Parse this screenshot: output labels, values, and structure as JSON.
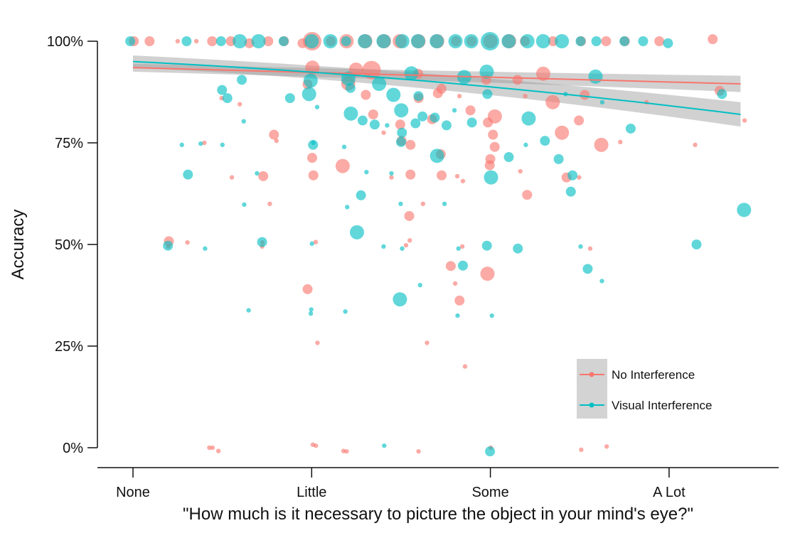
{
  "chart_data": {
    "type": "scatter",
    "xlabel": "\"How much is it necessary to picture the object in your mind's eye?\"",
    "ylabel": "Accuracy",
    "x_categories": [
      "None",
      "Little",
      "Some",
      "A Lot"
    ],
    "xlim": [
      0.8,
      4.6
    ],
    "ylim": [
      -0.04,
      1.04
    ],
    "y_ticks": [
      0,
      0.25,
      0.5,
      0.75,
      1.0
    ],
    "y_tick_labels": [
      "0%",
      "25%",
      "50%",
      "75%",
      "100%"
    ],
    "grid": false,
    "legend_position": "bottom-right",
    "series": [
      {
        "name": "No Interference",
        "color": "#F8766D",
        "trend": {
          "x0": 1.0,
          "y0": 0.935,
          "x1": 4.4,
          "y1": 0.895,
          "se_lo0": 0.925,
          "se_hi0": 0.945,
          "se_lo1": 0.875,
          "se_hi1": 0.915
        },
        "points": [
          [
            1.0,
            1.0,
            2
          ],
          [
            1.1,
            1.0,
            2
          ],
          [
            1.25,
            1.0,
            1
          ],
          [
            1.35,
            1.0,
            1
          ],
          [
            1.45,
            1.0,
            2
          ],
          [
            1.55,
            1.0,
            2
          ],
          [
            1.65,
            0.995,
            2
          ],
          [
            1.75,
            1.0,
            2
          ],
          [
            1.85,
            1.0,
            2
          ],
          [
            1.95,
            0.995,
            2
          ],
          [
            2.0,
            1.0,
            4
          ],
          [
            2.1,
            1.0,
            2
          ],
          [
            2.2,
            1.0,
            3
          ],
          [
            2.3,
            1.0,
            3
          ],
          [
            2.4,
            1.0,
            3
          ],
          [
            2.5,
            1.0,
            3
          ],
          [
            2.6,
            1.0,
            3
          ],
          [
            2.7,
            1.0,
            3
          ],
          [
            2.8,
            1.0,
            2
          ],
          [
            2.9,
            1.0,
            2
          ],
          [
            3.0,
            1.0,
            3
          ],
          [
            3.1,
            1.0,
            3
          ],
          [
            3.2,
            1.0,
            2
          ],
          [
            3.35,
            1.0,
            2
          ],
          [
            3.5,
            1.0,
            2
          ],
          [
            3.65,
            1.0,
            2
          ],
          [
            3.75,
            1.0,
            2
          ],
          [
            3.95,
            1.0,
            2
          ],
          [
            4.25,
            1.005,
            2
          ],
          [
            1.2,
            0.508,
            2
          ],
          [
            1.2,
            0.495,
            1
          ],
          [
            1.3,
            0.505,
            1
          ],
          [
            1.4,
            0.75,
            1
          ],
          [
            1.42,
            0.0,
            1
          ],
          [
            1.48,
            -0.008,
            1
          ],
          [
            1.55,
            0.665,
            1
          ],
          [
            1.6,
            0.845,
            1
          ],
          [
            1.72,
            0.495,
            1
          ],
          [
            1.72,
            0.505,
            1
          ],
          [
            1.78,
            0.77,
            2
          ],
          [
            1.8,
            0.755,
            1
          ],
          [
            1.77,
            0.6,
            1
          ],
          [
            1.72,
            0.668,
            2
          ],
          [
            1.5,
            0.86,
            1
          ],
          [
            1.98,
            0.894,
            2
          ],
          [
            2.0,
            0.935,
            3
          ],
          [
            2.0,
            0.713,
            2
          ],
          [
            2.0,
            0.67,
            2
          ],
          [
            2.02,
            0.506,
            1
          ],
          [
            2.0,
            0.0075,
            1
          ],
          [
            2.02,
            0.005,
            1
          ],
          [
            1.98,
            0.39,
            2
          ],
          [
            2.03,
            0.258,
            1
          ],
          [
            2.18,
            0.693,
            3
          ],
          [
            2.18,
            -0.008,
            1
          ],
          [
            2.2,
            0.896,
            3
          ],
          [
            2.25,
            0.93,
            3
          ],
          [
            2.3,
            0.868,
            2
          ],
          [
            2.33,
            0.929,
            4
          ],
          [
            2.35,
            0.82,
            2
          ],
          [
            2.4,
            0.775,
            1
          ],
          [
            2.45,
            0.665,
            1
          ],
          [
            2.5,
            0.755,
            2
          ],
          [
            2.5,
            0.795,
            2
          ],
          [
            2.52,
            0.498,
            1
          ],
          [
            2.55,
            0.745,
            2
          ],
          [
            2.55,
            0.51,
            1
          ],
          [
            2.55,
            0.672,
            2
          ],
          [
            2.55,
            0.57,
            2
          ],
          [
            2.6,
            0.92,
            2
          ],
          [
            2.6,
            0.86,
            2
          ],
          [
            2.62,
            0.6,
            1
          ],
          [
            2.65,
            0.258,
            1
          ],
          [
            2.68,
            0.808,
            2
          ],
          [
            2.7,
            0.872,
            2
          ],
          [
            2.72,
            0.67,
            2
          ],
          [
            2.72,
            0.722,
            2
          ],
          [
            2.72,
            0.883,
            2
          ],
          [
            2.78,
            0.447,
            2
          ],
          [
            2.8,
            0.404,
            1
          ],
          [
            2.82,
            0.362,
            2
          ],
          [
            2.85,
            0.2,
            1
          ],
          [
            2.82,
            0.668,
            1
          ],
          [
            2.84,
            0.656,
            1
          ],
          [
            2.88,
            0.83,
            2
          ],
          [
            2.82,
            0.865,
            1
          ],
          [
            2.85,
            0.495,
            1
          ],
          [
            2.98,
            0.428,
            3
          ],
          [
            2.98,
            0.905,
            2
          ],
          [
            2.98,
            0.8,
            2
          ],
          [
            3.0,
            0.71,
            2
          ],
          [
            3.0,
            0.695,
            2
          ],
          [
            3.02,
            0.815,
            3
          ],
          [
            3.02,
            0.74,
            2
          ],
          [
            3.02,
            0.77,
            2
          ],
          [
            3.0,
            0.0,
            1
          ],
          [
            3.15,
            0.905,
            2
          ],
          [
            3.17,
            0.68,
            1
          ],
          [
            3.2,
            0.622,
            2
          ],
          [
            3.2,
            0.865,
            1
          ],
          [
            3.3,
            0.92,
            3
          ],
          [
            3.35,
            0.85,
            3
          ],
          [
            3.4,
            0.775,
            3
          ],
          [
            3.42,
            0.665,
            2
          ],
          [
            3.5,
            0.805,
            2
          ],
          [
            3.5,
            0.665,
            1
          ],
          [
            3.55,
            0.49,
            1
          ],
          [
            3.52,
            0.868,
            2
          ],
          [
            3.62,
            0.745,
            3
          ],
          [
            3.72,
            0.752,
            1
          ],
          [
            3.88,
            0.85,
            1
          ],
          [
            4.15,
            0.745,
            1
          ],
          [
            4.28,
            0.878,
            2
          ],
          [
            4.42,
            0.805,
            1
          ],
          [
            1.45,
            0.0,
            1
          ],
          [
            2.2,
            -0.009,
            1
          ],
          [
            2.6,
            -0.009,
            1
          ],
          [
            3.5,
            -0.005,
            1
          ],
          [
            3.65,
            0.003,
            1
          ]
        ]
      },
      {
        "name": "Visual Interference",
        "color": "#00BFC4",
        "trend": {
          "x0": 1.0,
          "y0": 0.95,
          "x1": 4.4,
          "y1": 0.82,
          "se_lo0": 0.935,
          "se_hi0": 0.965,
          "se_lo1": 0.79,
          "se_hi1": 0.85
        },
        "points": [
          [
            0.98,
            1.0,
            2
          ],
          [
            1.3,
            1.0,
            2
          ],
          [
            1.5,
            1.0,
            2
          ],
          [
            1.6,
            1.0,
            3
          ],
          [
            1.7,
            1.0,
            3
          ],
          [
            1.85,
            1.0,
            2
          ],
          [
            2.0,
            1.0,
            3
          ],
          [
            2.1,
            1.0,
            3
          ],
          [
            2.2,
            1.0,
            2
          ],
          [
            2.3,
            1.0,
            3
          ],
          [
            2.4,
            1.0,
            3
          ],
          [
            2.5,
            1.0,
            3
          ],
          [
            2.6,
            1.0,
            3
          ],
          [
            2.7,
            1.0,
            3
          ],
          [
            2.8,
            1.0,
            3
          ],
          [
            2.9,
            1.0,
            3
          ],
          [
            3.0,
            1.0,
            4
          ],
          [
            3.1,
            1.0,
            3
          ],
          [
            3.2,
            1.0,
            3
          ],
          [
            3.3,
            1.0,
            3
          ],
          [
            3.4,
            1.0,
            3
          ],
          [
            3.5,
            1.0,
            2
          ],
          [
            3.6,
            1.0,
            2
          ],
          [
            3.75,
            1.0,
            2
          ],
          [
            3.85,
            1.0,
            2
          ],
          [
            4.0,
            0.995,
            2
          ],
          [
            1.2,
            0.497,
            2
          ],
          [
            1.28,
            0.745,
            1
          ],
          [
            1.3,
            0.672,
            2
          ],
          [
            1.38,
            0.748,
            1
          ],
          [
            1.4,
            0.49,
            1
          ],
          [
            1.5,
            0.88,
            2
          ],
          [
            1.52,
            0.86,
            2
          ],
          [
            1.5,
            0.745,
            1
          ],
          [
            1.6,
            0.905,
            2
          ],
          [
            1.62,
            0.803,
            1
          ],
          [
            1.62,
            0.598,
            1
          ],
          [
            1.65,
            0.338,
            1
          ],
          [
            1.7,
            0.675,
            1
          ],
          [
            1.72,
            0.506,
            2
          ],
          [
            1.88,
            0.86,
            2
          ],
          [
            1.98,
            0.87,
            3
          ],
          [
            2.0,
            0.903,
            3
          ],
          [
            2.0,
            0.75,
            1
          ],
          [
            2.0,
            0.745,
            2
          ],
          [
            2.0,
            0.502,
            1
          ],
          [
            2.0,
            0.33,
            1
          ],
          [
            2.0,
            0.34,
            1
          ],
          [
            2.03,
            0.838,
            1
          ],
          [
            2.18,
            0.335,
            1
          ],
          [
            2.18,
            0.74,
            1
          ],
          [
            2.2,
            0.592,
            1
          ],
          [
            2.2,
            0.908,
            3
          ],
          [
            2.22,
            0.885,
            2
          ],
          [
            2.22,
            0.822,
            3
          ],
          [
            2.25,
            0.53,
            3
          ],
          [
            2.28,
            0.805,
            2
          ],
          [
            2.28,
            0.621,
            2
          ],
          [
            2.3,
            0.678,
            1
          ],
          [
            2.35,
            0.795,
            2
          ],
          [
            2.38,
            0.895,
            3
          ],
          [
            2.4,
            0.005,
            1
          ],
          [
            2.42,
            0.793,
            1
          ],
          [
            2.45,
            0.675,
            1
          ],
          [
            2.45,
            0.868,
            3
          ],
          [
            2.5,
            0.49,
            1
          ],
          [
            2.5,
            0.83,
            3
          ],
          [
            2.5,
            0.775,
            2
          ],
          [
            2.5,
            0.752,
            2
          ],
          [
            2.5,
            0.6,
            1
          ],
          [
            2.5,
            0.365,
            3
          ],
          [
            2.55,
            0.921,
            3
          ],
          [
            2.58,
            0.798,
            2
          ],
          [
            2.6,
            0.4,
            1
          ],
          [
            2.6,
            0.865,
            2
          ],
          [
            2.62,
            0.815,
            2
          ],
          [
            2.68,
            0.812,
            2
          ],
          [
            2.7,
            0.718,
            3
          ],
          [
            2.75,
            0.6,
            1
          ],
          [
            2.75,
            0.793,
            2
          ],
          [
            2.8,
            0.83,
            1
          ],
          [
            2.82,
            0.49,
            1
          ],
          [
            2.82,
            0.325,
            1
          ],
          [
            2.85,
            0.912,
            3
          ],
          [
            2.85,
            0.448,
            2
          ],
          [
            2.9,
            0.8,
            2
          ],
          [
            2.98,
            0.497,
            2
          ],
          [
            2.98,
            0.925,
            3
          ],
          [
            2.98,
            0.87,
            2
          ],
          [
            3.0,
            0.665,
            3
          ],
          [
            3.0,
            0.325,
            1
          ],
          [
            3.0,
            -0.009,
            2
          ],
          [
            3.1,
            0.715,
            2
          ],
          [
            3.15,
            0.49,
            2
          ],
          [
            3.2,
            0.745,
            1
          ],
          [
            3.22,
            0.81,
            3
          ],
          [
            3.3,
            0.755,
            2
          ],
          [
            3.38,
            0.71,
            2
          ],
          [
            3.42,
            0.87,
            1
          ],
          [
            3.45,
            0.67,
            2
          ],
          [
            3.45,
            0.63,
            2
          ],
          [
            3.5,
            0.495,
            1
          ],
          [
            3.55,
            0.44,
            2
          ],
          [
            3.58,
            0.913,
            3
          ],
          [
            3.62,
            0.85,
            1
          ],
          [
            3.62,
            0.41,
            1
          ],
          [
            3.78,
            0.785,
            2
          ],
          [
            4.15,
            0.5,
            2
          ],
          [
            4.3,
            0.87,
            2
          ],
          [
            4.42,
            0.585,
            3
          ],
          [
            2.4,
            0.495,
            1
          ]
        ]
      }
    ]
  }
}
